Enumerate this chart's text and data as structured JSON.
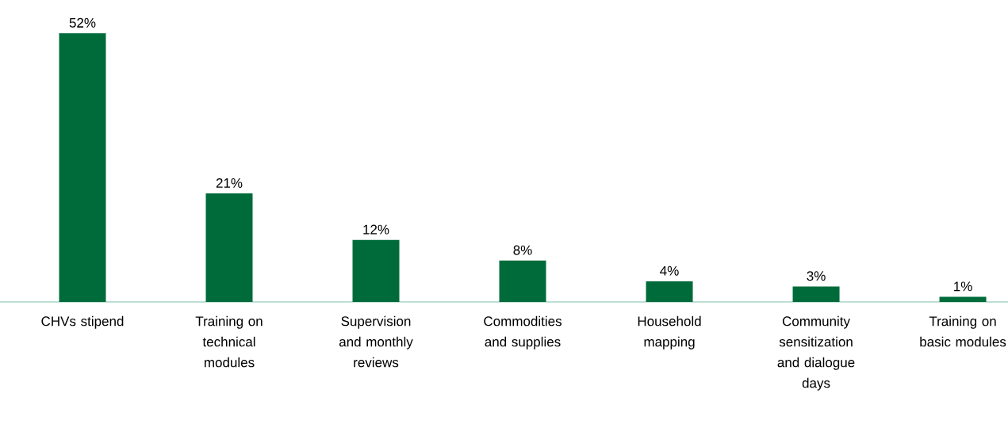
{
  "chart_data": {
    "type": "bar",
    "categories": [
      "CHVs stipend",
      "Training on technical modules",
      "Supervision and monthly reviews",
      "Commodities and supplies",
      "Household mapping",
      "Community sensitization and dialogue days",
      "Training on basic modules"
    ],
    "values": [
      52,
      21,
      12,
      8,
      4,
      3,
      1
    ],
    "value_labels": [
      "52%",
      "21%",
      "12%",
      "8%",
      "4%",
      "3%",
      "1%"
    ],
    "color": "#006b3a"
  }
}
